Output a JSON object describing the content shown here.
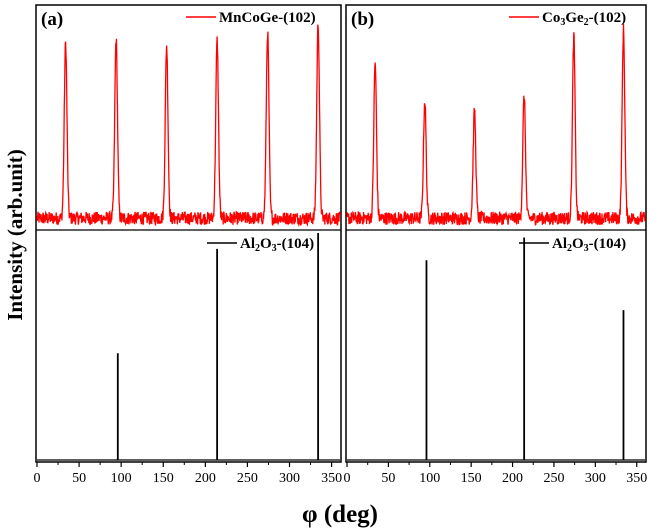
{
  "figure": {
    "y_axis_label": "Intensity (arb.unit)",
    "x_axis_label": "φ (deg)"
  },
  "chart_data": [
    {
      "type": "line",
      "panel_label": "(a)",
      "xlim": [
        0,
        360
      ],
      "xticks": [
        0,
        50,
        100,
        150,
        200,
        250,
        300,
        350
      ],
      "top": {
        "legend": {
          "text": "MnCoGe-(102)",
          "color": "#ff0000"
        },
        "series_color": "#ff0000",
        "baseline": 0.04,
        "noise": 0.03,
        "peak_width": 1.6,
        "peaks": [
          {
            "x": 34,
            "y": 0.84
          },
          {
            "x": 94,
            "y": 0.86
          },
          {
            "x": 154,
            "y": 0.83
          },
          {
            "x": 214,
            "y": 0.85
          },
          {
            "x": 274,
            "y": 0.89
          },
          {
            "x": 334,
            "y": 0.93
          }
        ],
        "ylim": [
          0,
          1
        ]
      },
      "bottom": {
        "legend": {
          "text": "Al",
          "sub1": "2",
          "mid": "O",
          "sub2": "3",
          "tail": "-(104)",
          "color": "#000000"
        },
        "series_color": "#000000",
        "peaks": [
          {
            "x": 96,
            "y": 0.47
          },
          {
            "x": 214,
            "y": 0.93
          },
          {
            "x": 334,
            "y": 1.0
          }
        ],
        "ylim": [
          0,
          1
        ]
      }
    },
    {
      "type": "line",
      "panel_label": "(b)",
      "xlim": [
        0,
        360
      ],
      "xticks": [
        0,
        50,
        100,
        150,
        200,
        250,
        300,
        350
      ],
      "top": {
        "legend": {
          "text": "Co",
          "sub1": "3",
          "mid": "Ge",
          "sub2": "2",
          "tail": "-(102)",
          "color": "#ff0000"
        },
        "series_color": "#ff0000",
        "baseline": 0.04,
        "noise": 0.03,
        "peak_width": 1.6,
        "peaks": [
          {
            "x": 34,
            "y": 0.75
          },
          {
            "x": 94,
            "y": 0.58
          },
          {
            "x": 154,
            "y": 0.53
          },
          {
            "x": 214,
            "y": 0.6
          },
          {
            "x": 274,
            "y": 0.87
          },
          {
            "x": 334,
            "y": 0.9
          }
        ],
        "ylim": [
          0,
          1
        ]
      },
      "bottom": {
        "legend": {
          "text": "Al",
          "sub1": "2",
          "mid": "O",
          "sub2": "3",
          "tail": "-(104)",
          "color": "#000000"
        },
        "series_color": "#000000",
        "peaks": [
          {
            "x": 96,
            "y": 0.88
          },
          {
            "x": 214,
            "y": 0.98
          },
          {
            "x": 334,
            "y": 0.66
          }
        ],
        "ylim": [
          0,
          1
        ]
      }
    }
  ]
}
